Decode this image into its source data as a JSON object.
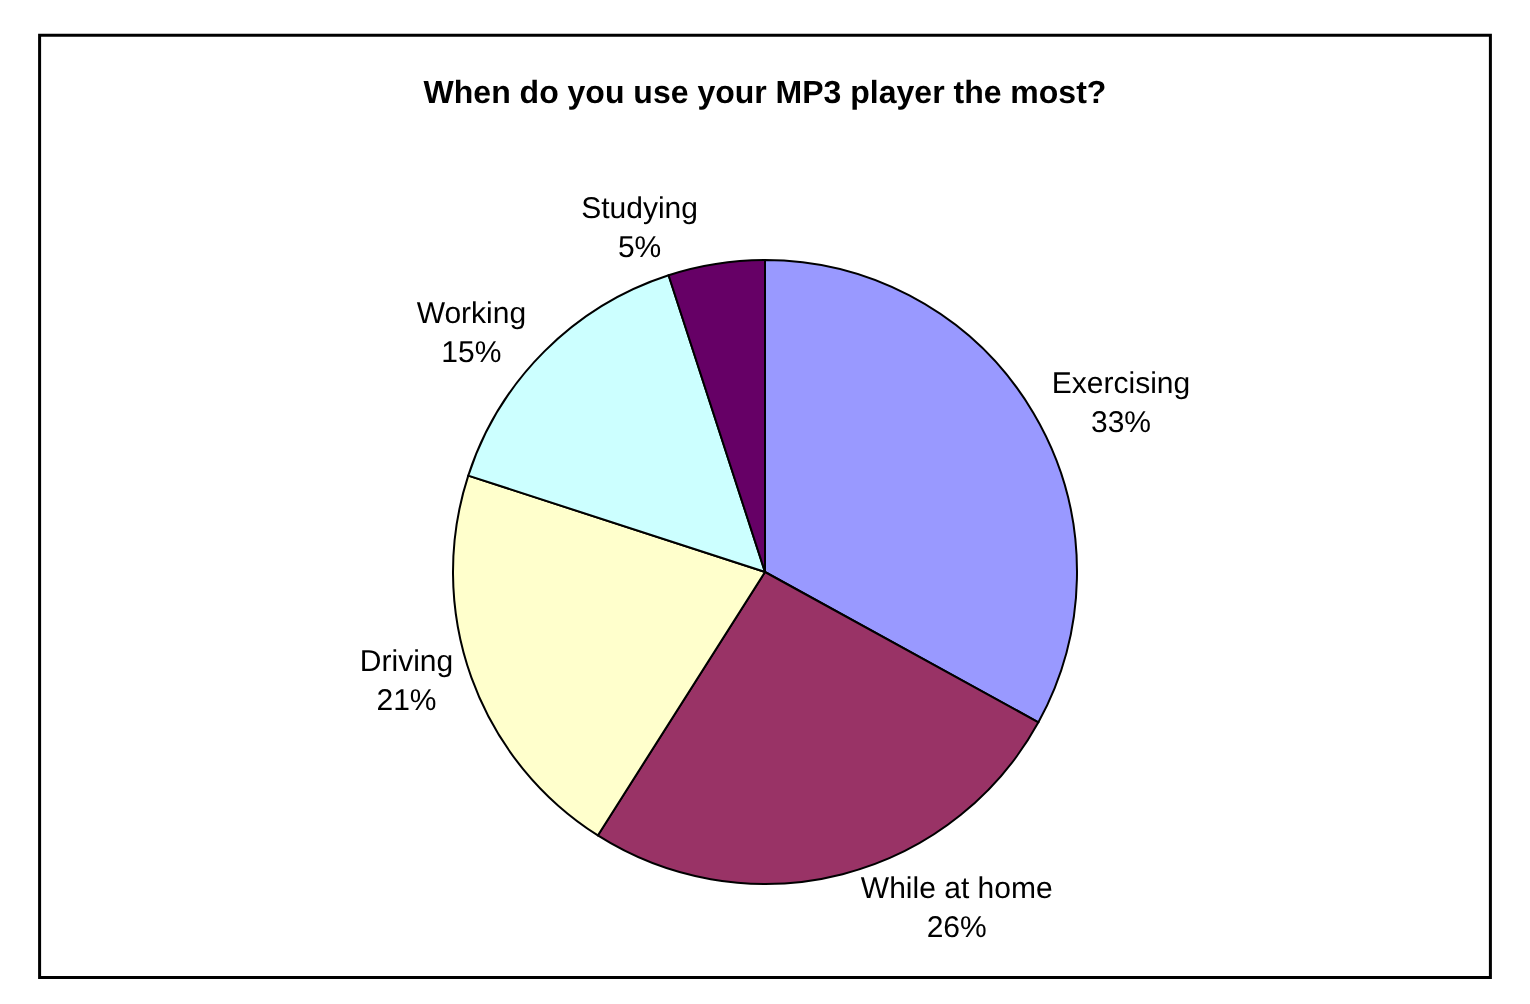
{
  "chart_data": {
    "type": "pie",
    "title": "When do you use your MP3 player the most?",
    "categories": [
      "Exercising",
      "While at home",
      "Driving",
      "Working",
      "Studying"
    ],
    "values": [
      33,
      26,
      21,
      15,
      5
    ],
    "value_labels": [
      "33%",
      "26%",
      "21%",
      "15%",
      "5%"
    ],
    "colors": [
      "#9999ff",
      "#993366",
      "#ffffcc",
      "#ccffff",
      "#660066"
    ],
    "legend": false
  }
}
